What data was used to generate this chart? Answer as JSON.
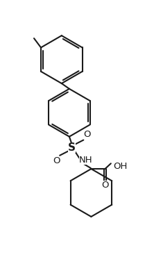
{
  "bg_color": "#ffffff",
  "line_color": "#1a1a1a",
  "line_width": 1.5,
  "fig_width": 2.22,
  "fig_height": 3.8,
  "dpi": 100,
  "xlim": [
    -1.5,
    8.5
  ],
  "ylim": [
    0,
    17
  ]
}
